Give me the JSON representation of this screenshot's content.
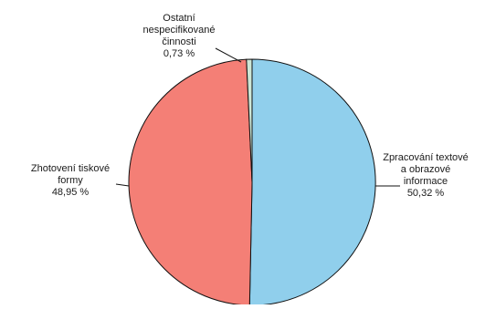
{
  "chart_data": {
    "type": "pie",
    "title": "",
    "slices": [
      {
        "label": [
          "Zpracování textové",
          "a obrazové",
          "informace"
        ],
        "value_text": "50,32 %",
        "value": 50.32,
        "color": "#90cfec"
      },
      {
        "label": [
          "Zhotovení tiskové",
          "formy"
        ],
        "value_text": "48,95 %",
        "value": 48.95,
        "color": "#f47f76"
      },
      {
        "label": [
          "Ostatní",
          "nespecifikované",
          "činnosti"
        ],
        "value_text": "0,73 %",
        "value": 0.73,
        "color": "#cde6d6"
      }
    ],
    "slice_border_color": "#111111",
    "legend": "none",
    "start": "top",
    "direction": "clockwise"
  }
}
